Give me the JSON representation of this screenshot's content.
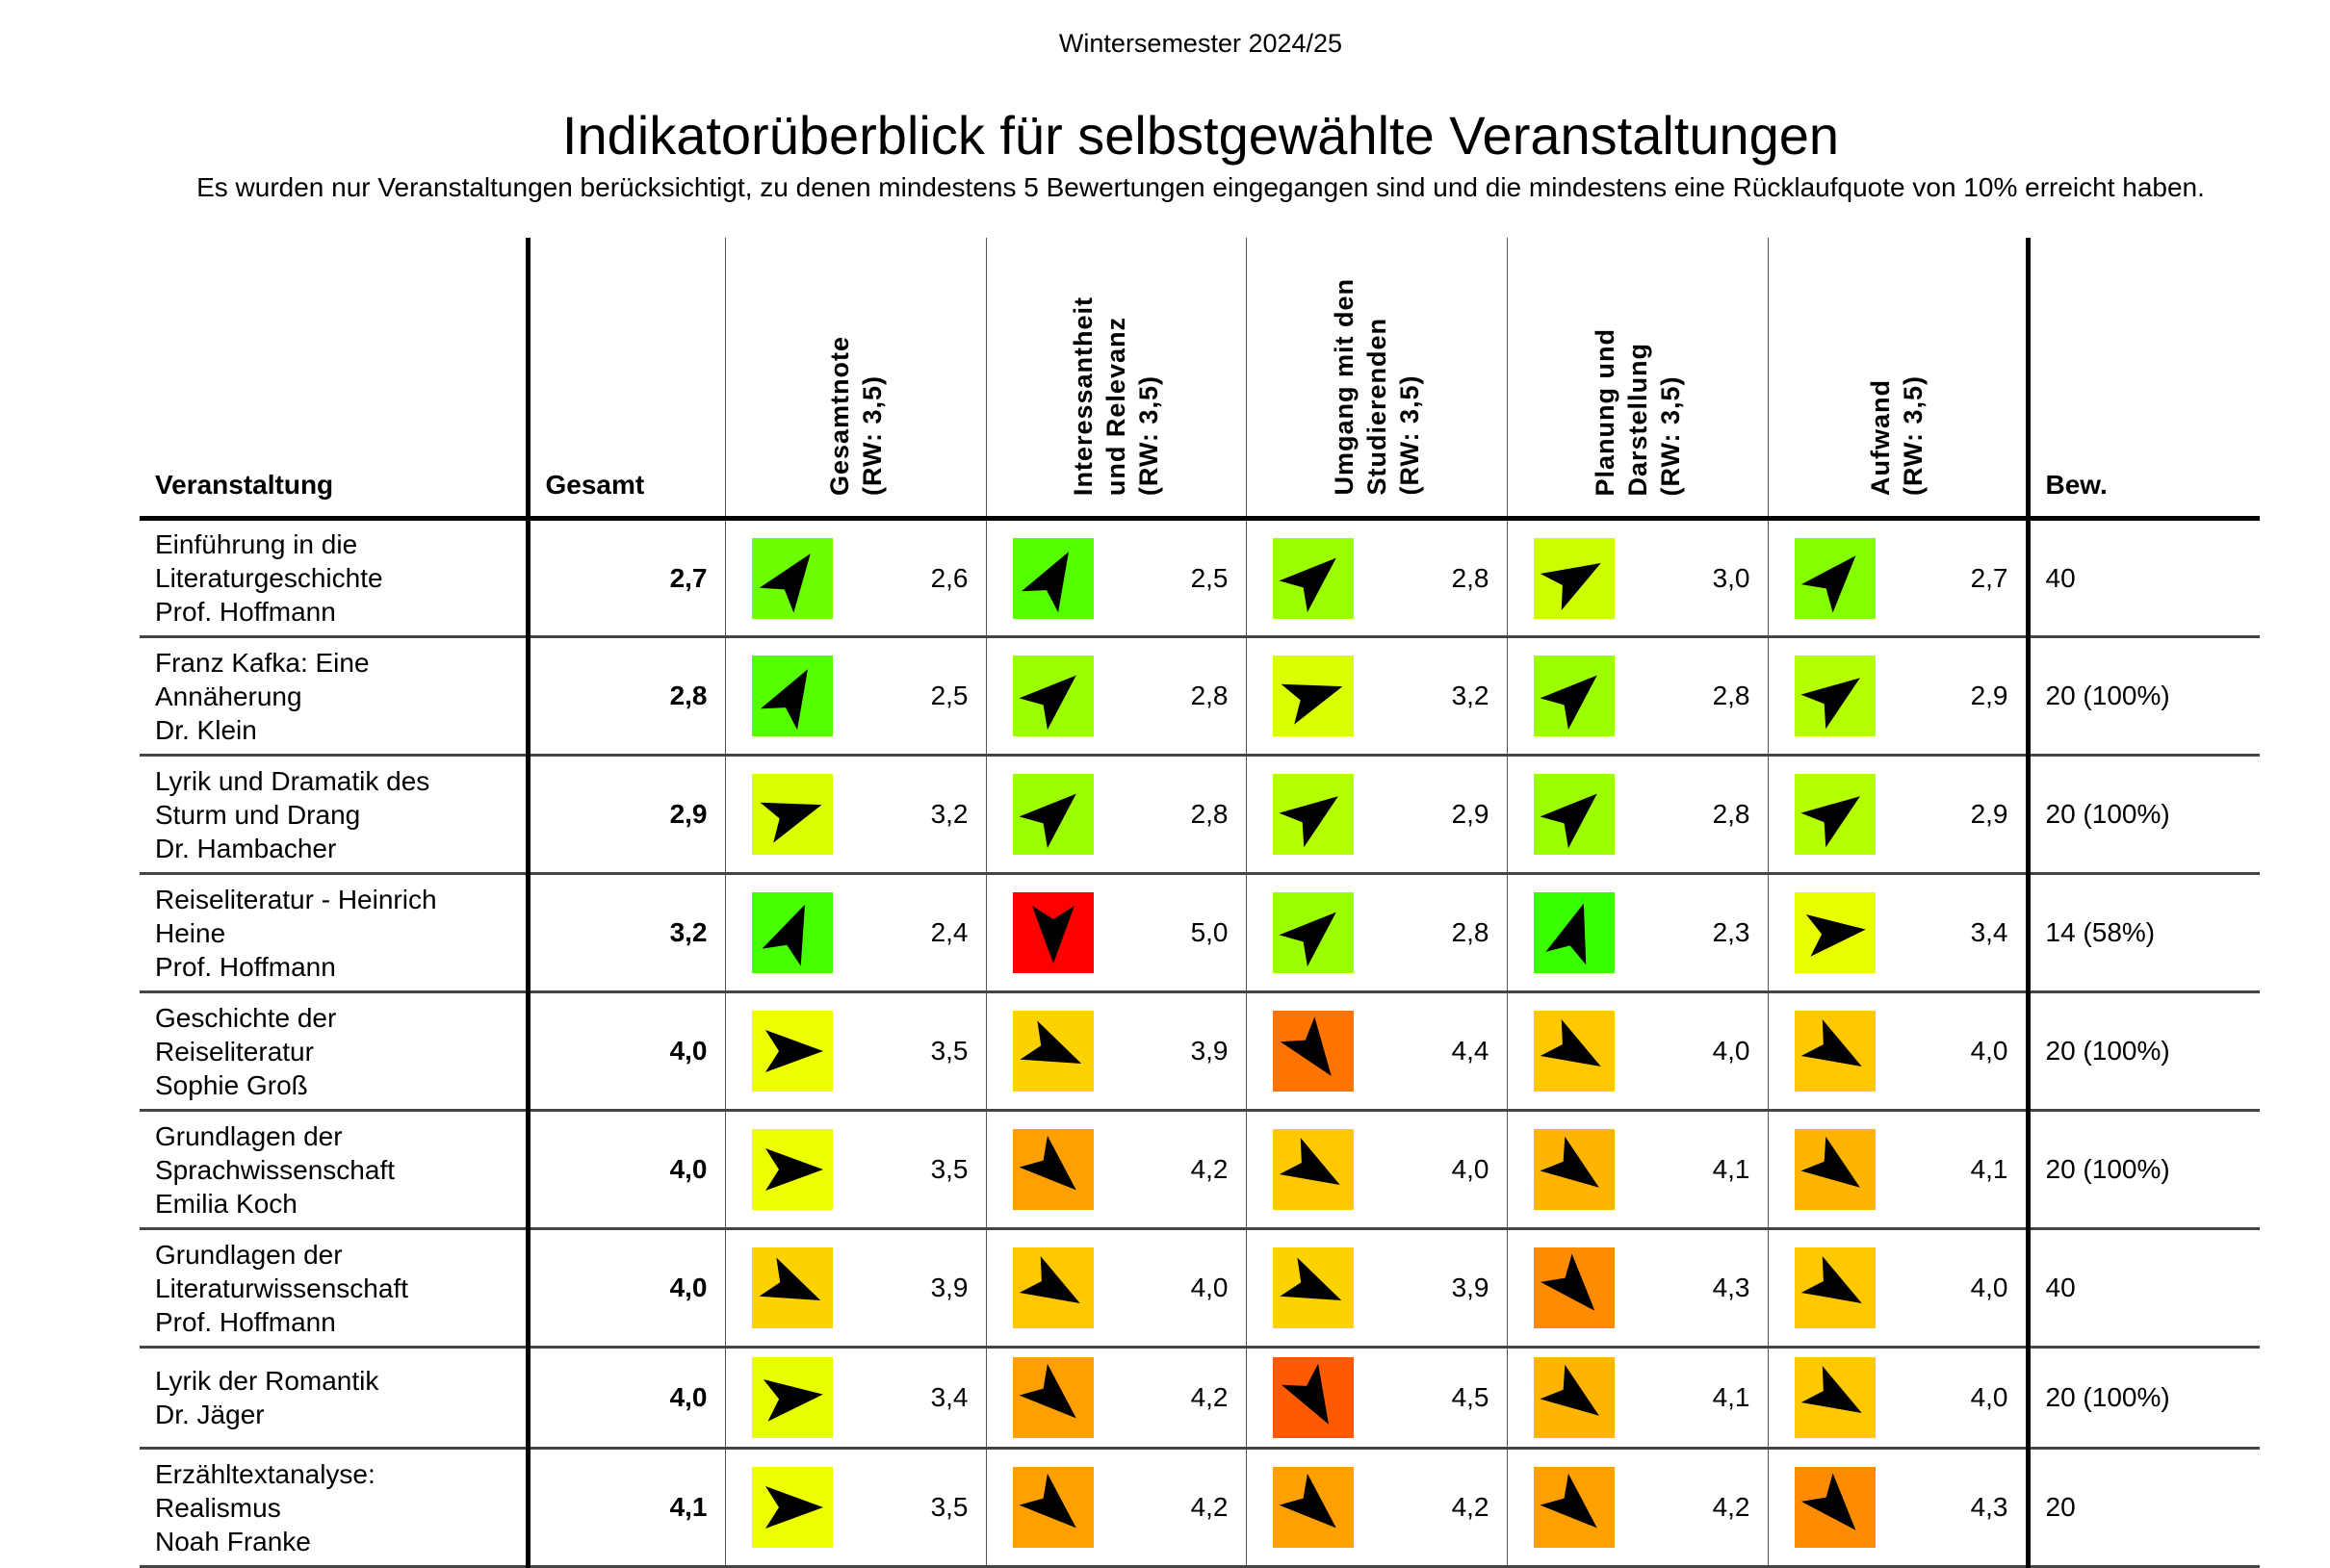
{
  "semester": "Wintersemester 2024/25",
  "title": "Indikatorüberblick für selbstgewählte Veranstaltungen",
  "subtitle": "Es wurden nur Veranstaltungen berücksichtigt, zu denen mindestens 5 Bewertungen eingegangen sind und die mindestens eine Rücklaufquote von 10% erreicht haben.",
  "headers": {
    "course": "Veranstaltung",
    "total": "Gesamt",
    "indicators": [
      [
        "Gesamtnote",
        "(RW: 3,5)"
      ],
      [
        "Interessantheit",
        "und Relevanz",
        "(RW: 3,5)"
      ],
      [
        "Umgang mit den",
        "Studierenden",
        "(RW: 3,5)"
      ],
      [
        "Planung und",
        "Darstellung",
        "(RW: 3,5)"
      ],
      [
        "Aufwand",
        "(RW: 3,5)"
      ]
    ],
    "ratings": "Bew."
  },
  "color_scale": [
    [
      2.0,
      "#10ff00"
    ],
    [
      2.5,
      "#55ff00"
    ],
    [
      3.0,
      "#ccff00"
    ],
    [
      3.5,
      "#eeff00"
    ],
    [
      4.0,
      "#ffc800"
    ],
    [
      4.3,
      "#ff8c00"
    ],
    [
      4.5,
      "#ff5a00"
    ],
    [
      5.0,
      "#ff0000"
    ]
  ],
  "rows": [
    {
      "course": [
        "Einführung in die",
        "Literaturgeschichte",
        "Prof. Hoffmann"
      ],
      "total": "2,7",
      "values": [
        "2,6",
        "2,5",
        "2,8",
        "3,0",
        "2,7"
      ],
      "ratings": "40"
    },
    {
      "course": [
        "Franz Kafka: Eine",
        "Annäherung",
        "Dr. Klein"
      ],
      "total": "2,8",
      "values": [
        "2,5",
        "2,8",
        "3,2",
        "2,8",
        "2,9"
      ],
      "ratings": "20 (100%)"
    },
    {
      "course": [
        "Lyrik und Dramatik des",
        "Sturm und Drang",
        "Dr. Hambacher"
      ],
      "total": "2,9",
      "values": [
        "3,2",
        "2,8",
        "2,9",
        "2,8",
        "2,9"
      ],
      "ratings": "20 (100%)"
    },
    {
      "course": [
        "Reiseliteratur - Heinrich",
        "Heine",
        "Prof. Hoffmann"
      ],
      "total": "3,2",
      "values": [
        "2,4",
        "5,0",
        "2,8",
        "2,3",
        "3,4"
      ],
      "ratings": "14 (58%)"
    },
    {
      "course": [
        "Geschichte der",
        "Reiseliteratur",
        "Sophie Groß"
      ],
      "total": "4,0",
      "values": [
        "3,5",
        "3,9",
        "4,4",
        "4,0",
        "4,0"
      ],
      "ratings": "20 (100%)"
    },
    {
      "course": [
        "Grundlagen der",
        "Sprachwissenschaft",
        "Emilia Koch"
      ],
      "total": "4,0",
      "values": [
        "3,5",
        "4,2",
        "4,0",
        "4,1",
        "4,1"
      ],
      "ratings": "20 (100%)"
    },
    {
      "course": [
        "Grundlagen der",
        "Literaturwissenschaft",
        "Prof. Hoffmann"
      ],
      "total": "4,0",
      "values": [
        "3,9",
        "4,0",
        "3,9",
        "4,3",
        "4,0"
      ],
      "ratings": "40"
    },
    {
      "course": [
        "Lyrik der Romantik",
        "Dr. Jäger"
      ],
      "total": "4,0",
      "values": [
        "3,4",
        "4,2",
        "4,5",
        "4,1",
        "4,0"
      ],
      "ratings": "20 (100%)"
    },
    {
      "course": [
        "Erzähltextanalyse:",
        "Realismus",
        "Noah Franke"
      ],
      "total": "4,1",
      "values": [
        "3,5",
        "4,2",
        "4,2",
        "4,2",
        "4,3"
      ],
      "ratings": "20"
    }
  ]
}
